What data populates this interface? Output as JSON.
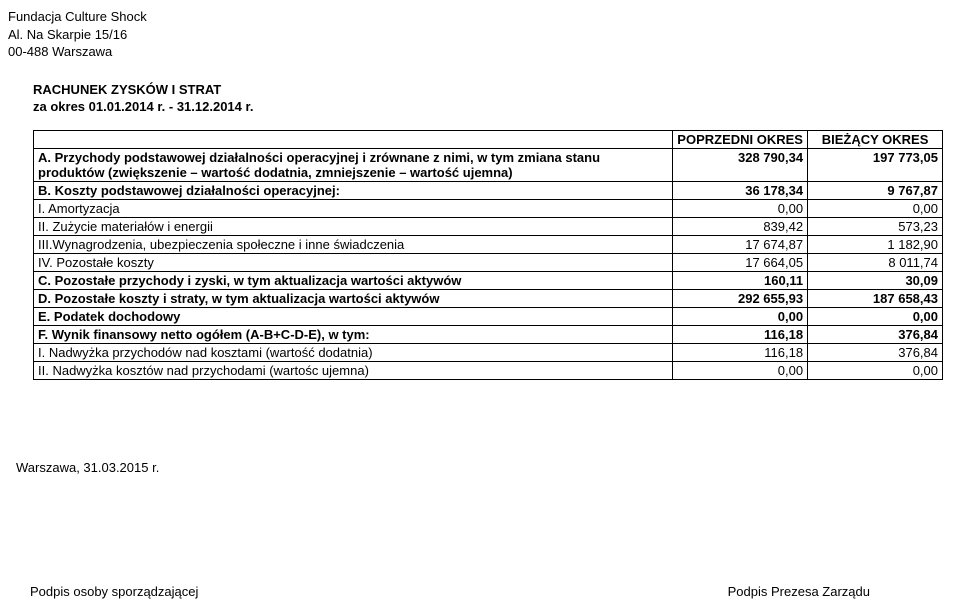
{
  "org": {
    "name": "Fundacja Culture Shock",
    "address1": "Al. Na Skarpie 15/16",
    "address2": "00-488 Warszawa"
  },
  "heading": {
    "title": "RACHUNEK ZYSKÓW I STRAT",
    "period": "za okres 01.01.2014 r. - 31.12.2014 r."
  },
  "table": {
    "headers": {
      "prev": "POPRZEDNI OKRES",
      "curr": "BIEŻĄCY OKRES"
    },
    "rows": [
      {
        "key": "A",
        "label": "A. Przychody podstawowej działalności operacyjnej i zrównane z nimi, w tym zmiana stanu produktów (zwiększenie – wartość dodatnia, zmniejszenie – wartość ujemna)",
        "prev": "328 790,34",
        "curr": "197 773,05",
        "bold": true
      },
      {
        "key": "B",
        "label": "B. Koszty podstawowej działalności operacyjnej:",
        "prev": "36 178,34",
        "curr": "9 767,87",
        "bold": true
      },
      {
        "key": "B.I",
        "label": "I. Amortyzacja",
        "prev": "0,00",
        "curr": "0,00",
        "bold": false
      },
      {
        "key": "B.II",
        "label": "II. Zużycie materiałów i energii",
        "prev": "839,42",
        "curr": "573,23",
        "bold": false
      },
      {
        "key": "B.III",
        "label": "III.Wynagrodzenia, ubezpieczenia społeczne i inne świadczenia",
        "prev": "17 674,87",
        "curr": "1 182,90",
        "bold": false
      },
      {
        "key": "B.IV",
        "label": "IV. Pozostałe koszty",
        "prev": "17 664,05",
        "curr": "8 011,74",
        "bold": false
      },
      {
        "key": "C",
        "label": "C. Pozostałe przychody i zyski, w tym aktualizacja wartości aktywów",
        "prev": "160,11",
        "curr": "30,09",
        "bold": true
      },
      {
        "key": "D",
        "label": "D. Pozostałe koszty i straty, w tym aktualizacja wartości aktywów",
        "prev": "292 655,93",
        "curr": "187 658,43",
        "bold": true
      },
      {
        "key": "E",
        "label": "E. Podatek dochodowy",
        "prev": "0,00",
        "curr": "0,00",
        "bold": true
      },
      {
        "key": "F",
        "label": "F. Wynik finansowy netto ogółem (A-B+C-D-E), w tym:",
        "prev": "116,18",
        "curr": "376,84",
        "bold": true
      },
      {
        "key": "F.I",
        "label": "I. Nadwyżka przychodów nad kosztami (wartość dodatnia)",
        "prev": "116,18",
        "curr": "376,84",
        "bold": false
      },
      {
        "key": "F.II",
        "label": "II. Nadwyżka kosztów nad przychodami (wartośc ujemna)",
        "prev": "0,00",
        "curr": "0,00",
        "bold": false
      }
    ]
  },
  "footer": {
    "date_place": "Warszawa, 31.03.2015 r.",
    "signature_left": "Podpis osoby sporządzającej",
    "signature_right": "Podpis Prezesa Zarządu"
  }
}
